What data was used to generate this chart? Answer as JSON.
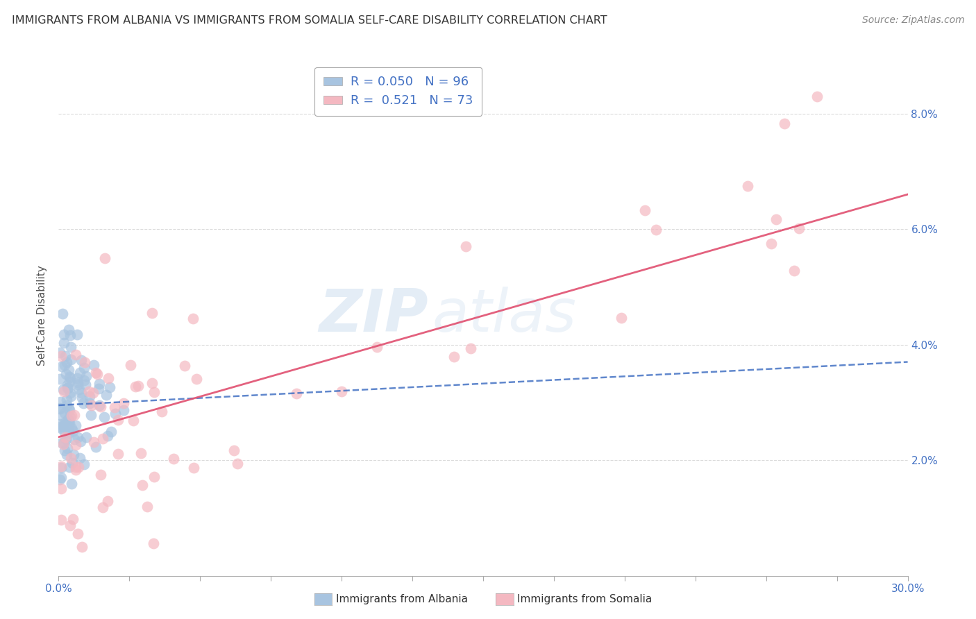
{
  "title": "IMMIGRANTS FROM ALBANIA VS IMMIGRANTS FROM SOMALIA SELF-CARE DISABILITY CORRELATION CHART",
  "source": "Source: ZipAtlas.com",
  "ylabel": "Self-Care Disability",
  "xlim": [
    0.0,
    0.3
  ],
  "ylim": [
    0.0,
    0.09
  ],
  "ytick_positions": [
    0.02,
    0.04,
    0.06,
    0.08
  ],
  "ytick_labels": [
    "2.0%",
    "4.0%",
    "6.0%",
    "8.0%"
  ],
  "xtick_minor_positions": [
    0.0,
    0.025,
    0.05,
    0.075,
    0.1,
    0.125,
    0.15,
    0.175,
    0.2,
    0.225,
    0.25,
    0.275,
    0.3
  ],
  "xtick_label_left": "0.0%",
  "xtick_label_right": "30.0%",
  "albania_color": "#a8c4e0",
  "somalia_color": "#f4b8c1",
  "albania_line_color": "#4472c4",
  "somalia_line_color": "#e05070",
  "albania_R": 0.05,
  "albania_N": 96,
  "somalia_R": 0.521,
  "somalia_N": 73,
  "legend_label_albania": "Immigrants from Albania",
  "legend_label_somalia": "Immigrants from Somalia",
  "watermark_zip": "ZIP",
  "watermark_atlas": "atlas",
  "background_color": "#ffffff",
  "grid_color": "#cccccc",
  "albania_line_start_y": 0.0295,
  "albania_line_end_y": 0.037,
  "somalia_line_start_y": 0.024,
  "somalia_line_end_y": 0.066
}
